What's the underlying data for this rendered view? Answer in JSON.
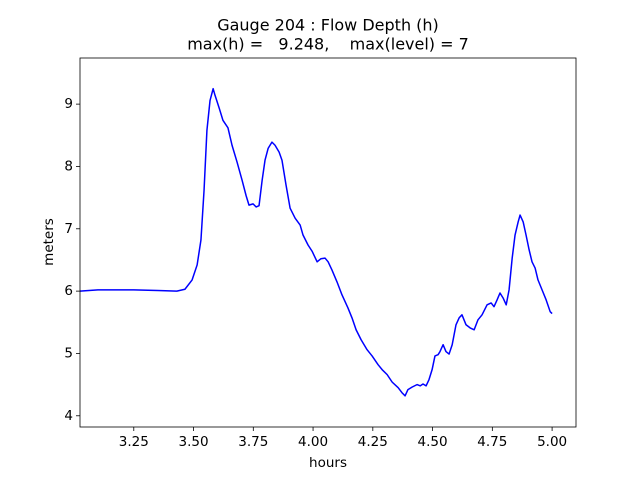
{
  "chart_data": {
    "type": "line",
    "title": "Gauge 204 : Flow Depth (h)",
    "subtitle": "max(h) =   9.248,    max(level) = 7",
    "x_label": "hours",
    "y_label": "meters",
    "xlim": [
      3.025,
      5.1
    ],
    "ylim": [
      3.82,
      9.74
    ],
    "xticks": [
      3.25,
      {
        "value": 3.5,
        "label": "3.50"
      },
      3.75,
      {
        "value": 4,
        "label": "4.00"
      },
      4.25,
      {
        "value": 4.5,
        "label": "4.50"
      },
      4.75,
      {
        "value": 5,
        "label": "5.00"
      }
    ],
    "yticks": [
      4,
      5,
      6,
      7,
      8,
      9
    ],
    "grid": false,
    "x": [
      3.025,
      3.1,
      3.25,
      3.35,
      3.43,
      3.464,
      3.494,
      3.515,
      3.531,
      3.544,
      3.556,
      3.569,
      3.582,
      3.59,
      3.607,
      3.623,
      3.644,
      3.661,
      3.682,
      3.703,
      3.72,
      3.732,
      3.749,
      3.762,
      3.774,
      3.787,
      3.799,
      3.812,
      3.828,
      3.841,
      3.858,
      3.87,
      3.887,
      3.904,
      3.925,
      3.946,
      3.958,
      3.979,
      3.996,
      4.017,
      4.033,
      4.05,
      4.063,
      4.079,
      4.1,
      4.121,
      4.146,
      4.163,
      4.18,
      4.201,
      4.226,
      4.247,
      4.272,
      4.289,
      4.31,
      4.331,
      4.356,
      4.372,
      4.385,
      4.397,
      4.414,
      4.435,
      4.448,
      4.46,
      4.473,
      4.485,
      4.498,
      4.51,
      4.523,
      4.531,
      4.544,
      4.556,
      4.569,
      4.582,
      4.598,
      4.611,
      4.623,
      4.64,
      4.657,
      4.674,
      4.69,
      4.707,
      4.728,
      4.745,
      4.757,
      4.77,
      4.782,
      4.795,
      4.808,
      4.82,
      4.833,
      4.845,
      4.858,
      4.866,
      4.879,
      4.891,
      4.904,
      4.916,
      4.929,
      4.941,
      4.958,
      4.975,
      4.992,
      5.0
    ],
    "series": [
      {
        "name": "h",
        "color": "#0000ff",
        "values": [
          6.0,
          6.02,
          6.02,
          6.01,
          6.0,
          6.03,
          6.18,
          6.42,
          6.82,
          7.62,
          8.58,
          9.06,
          9.248,
          9.14,
          8.94,
          8.74,
          8.62,
          8.34,
          8.07,
          7.78,
          7.53,
          7.38,
          7.4,
          7.35,
          7.37,
          7.78,
          8.1,
          8.29,
          8.39,
          8.34,
          8.23,
          8.1,
          7.7,
          7.33,
          7.17,
          7.06,
          6.9,
          6.74,
          6.64,
          6.47,
          6.52,
          6.53,
          6.47,
          6.34,
          6.15,
          5.94,
          5.73,
          5.57,
          5.38,
          5.22,
          5.06,
          4.96,
          4.82,
          4.74,
          4.66,
          4.54,
          4.45,
          4.37,
          4.32,
          4.42,
          4.46,
          4.5,
          4.48,
          4.51,
          4.48,
          4.58,
          4.74,
          4.96,
          4.98,
          5.03,
          5.14,
          5.03,
          4.99,
          5.14,
          5.46,
          5.57,
          5.62,
          5.46,
          5.41,
          5.38,
          5.54,
          5.62,
          5.78,
          5.81,
          5.75,
          5.86,
          5.97,
          5.89,
          5.78,
          6.02,
          6.53,
          6.9,
          7.11,
          7.22,
          7.11,
          6.9,
          6.66,
          6.47,
          6.37,
          6.18,
          6.02,
          5.86,
          5.67,
          5.64
        ]
      }
    ]
  }
}
